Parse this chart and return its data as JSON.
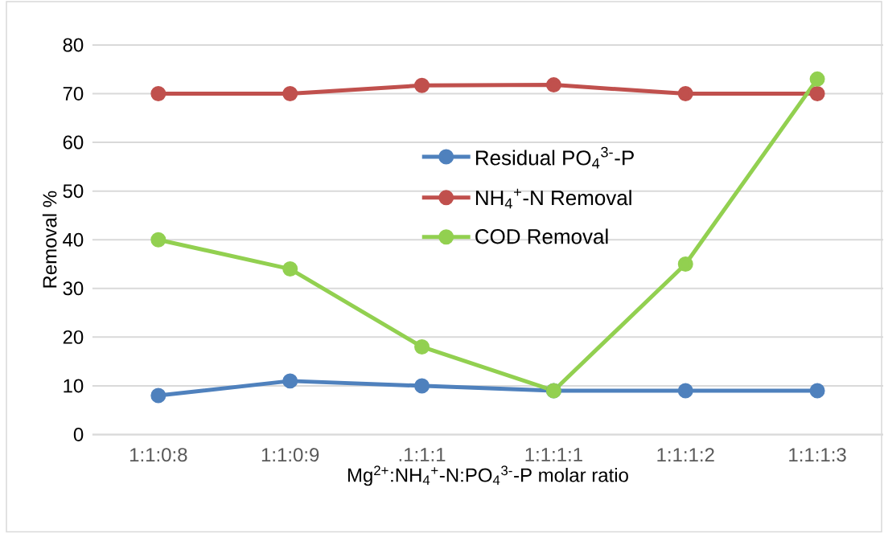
{
  "chart_data": {
    "type": "line",
    "xlabel": "Mg$^{2+}$:NH$_{4}$$^{+}$-N:PO$_{4}$$^{3-}$-P molar ratio",
    "ylabel": "Removal %",
    "categories": [
      "1:1:0:8",
      "1:1:0:9",
      ".1:1:1",
      "1:1:1:1",
      "1:1:1:2",
      "1:1:1:3"
    ],
    "series": [
      {
        "name": "Residual PO$_{4}$$^{3-}$-P",
        "color": "#4f81bd",
        "values": [
          8,
          11,
          10,
          9,
          9,
          9
        ]
      },
      {
        "name": "NH$_{4}$$^{+}$-N Removal",
        "color": "#c0504d",
        "values": [
          70,
          70,
          71.7,
          71.8,
          70,
          70
        ]
      },
      {
        "name": "COD Removal",
        "color": "#92d050",
        "values": [
          40,
          34,
          18,
          9,
          35,
          73
        ]
      }
    ],
    "ylim": [
      0,
      80
    ],
    "yticks": [
      0,
      10,
      20,
      30,
      40,
      50,
      60,
      70,
      80
    ],
    "grid": "y",
    "legend": "center",
    "marker": "circle",
    "line_style": "solid"
  }
}
